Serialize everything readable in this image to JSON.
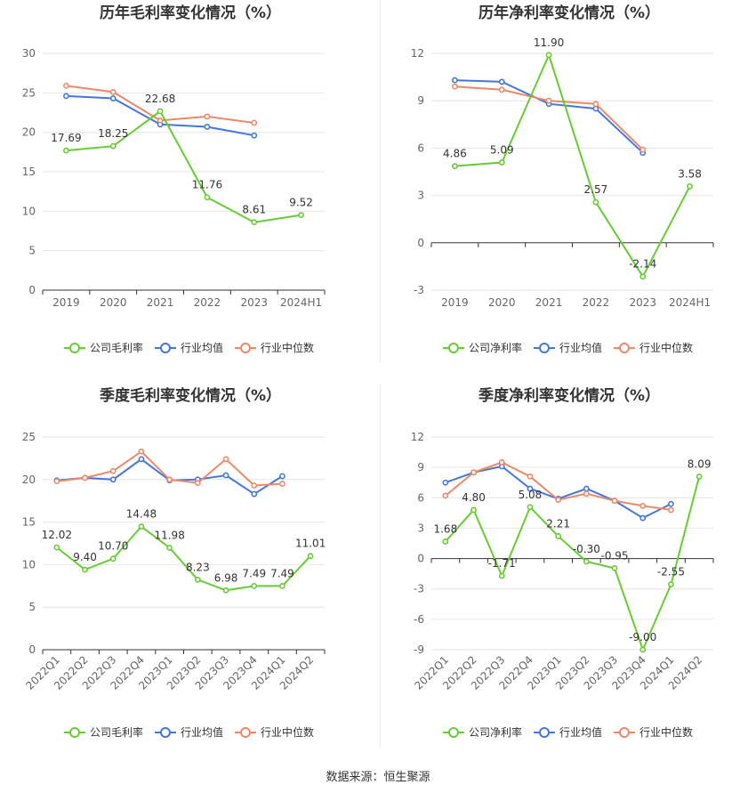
{
  "colors": {
    "company": "#66cc33",
    "avg": "#4477dd",
    "median": "#ee8866",
    "grid": "#e6e6e6",
    "axis": "#333333",
    "text": "#333333"
  },
  "legend": {
    "gross_company": "公司毛利率",
    "net_company": "公司净利率",
    "avg": "行业均值",
    "median": "行业中位数"
  },
  "source": "数据来源：恒生聚源",
  "chart_data": [
    {
      "type": "line",
      "title": "历年毛利率变化情况（%）",
      "categories": [
        "2019",
        "2020",
        "2021",
        "2022",
        "2023",
        "2024H1"
      ],
      "ylim": [
        0,
        30
      ],
      "yticks": [
        0,
        5,
        10,
        15,
        20,
        25,
        30
      ],
      "label_series": 0,
      "series": [
        {
          "name": "公司毛利率",
          "values": [
            17.69,
            18.25,
            22.68,
            11.76,
            8.61,
            9.52
          ],
          "labels": [
            "17.69",
            "18.25",
            "22.68",
            "11.76",
            "8.61",
            "9.52"
          ]
        },
        {
          "name": "行业均值",
          "values": [
            24.6,
            24.3,
            21.0,
            20.7,
            19.6,
            null
          ]
        },
        {
          "name": "行业中位数",
          "values": [
            25.9,
            25.1,
            21.5,
            22.0,
            21.2,
            null
          ]
        }
      ]
    },
    {
      "type": "line",
      "title": "历年净利率变化情况（%）",
      "categories": [
        "2019",
        "2020",
        "2021",
        "2022",
        "2023",
        "2024H1"
      ],
      "ylim": [
        -3,
        12
      ],
      "yticks": [
        -3,
        0,
        3,
        6,
        9,
        12
      ],
      "label_series": 0,
      "series": [
        {
          "name": "公司净利率",
          "values": [
            4.86,
            5.09,
            11.9,
            2.57,
            -2.14,
            3.58
          ],
          "labels": [
            "4.86",
            "5.09",
            "11.90",
            "2.57",
            "-2.14",
            "3.58"
          ]
        },
        {
          "name": "行业均值",
          "values": [
            10.3,
            10.2,
            8.8,
            8.5,
            5.7,
            null
          ]
        },
        {
          "name": "行业中位数",
          "values": [
            9.9,
            9.7,
            9.0,
            8.8,
            5.9,
            null
          ]
        }
      ]
    },
    {
      "type": "line",
      "title": "季度毛利率变化情况（%）",
      "categories": [
        "2022Q1",
        "2022Q2",
        "2022Q3",
        "2022Q4",
        "2023Q1",
        "2023Q2",
        "2023Q3",
        "2023Q4",
        "2024Q1",
        "2024Q2"
      ],
      "ylim": [
        0,
        25
      ],
      "yticks": [
        0,
        5,
        10,
        15,
        20,
        25
      ],
      "label_series": 0,
      "series": [
        {
          "name": "公司毛利率",
          "values": [
            12.02,
            9.4,
            10.7,
            14.48,
            11.98,
            8.23,
            6.98,
            7.49,
            7.49,
            11.01
          ],
          "labels": [
            "12.02",
            "9.40",
            "10.70",
            "14.48",
            "11.98",
            "8.23",
            "6.98",
            "7.49",
            "7.49",
            "11.01"
          ]
        },
        {
          "name": "行业均值",
          "values": [
            19.9,
            20.2,
            20.0,
            22.4,
            19.9,
            20.0,
            20.5,
            18.3,
            20.4,
            null
          ]
        },
        {
          "name": "行业中位数",
          "values": [
            19.8,
            20.2,
            21.0,
            23.3,
            20.0,
            19.6,
            22.4,
            19.3,
            19.5,
            null
          ]
        }
      ]
    },
    {
      "type": "line",
      "title": "季度净利率变化情况（%）",
      "categories": [
        "2022Q1",
        "2022Q2",
        "2022Q3",
        "2022Q4",
        "2023Q1",
        "2023Q2",
        "2023Q3",
        "2023Q4",
        "2024Q1",
        "2024Q2"
      ],
      "ylim": [
        -9,
        12
      ],
      "yticks": [
        -9,
        -6,
        -3,
        0,
        3,
        6,
        9,
        12
      ],
      "label_series": 0,
      "series": [
        {
          "name": "公司净利率",
          "values": [
            1.68,
            4.8,
            -1.71,
            5.08,
            2.21,
            -0.3,
            -0.95,
            -9.0,
            -2.55,
            8.09
          ],
          "labels": [
            "1.68",
            "4.80",
            "-1.71",
            "5.08",
            "2.21",
            "-0.30",
            "-0.95",
            "-9.00",
            "-2.55",
            "8.09"
          ]
        },
        {
          "name": "行业均值",
          "values": [
            7.5,
            8.5,
            9.1,
            6.9,
            5.9,
            6.9,
            5.7,
            4.0,
            5.4,
            null
          ]
        },
        {
          "name": "行业中位数",
          "values": [
            6.2,
            8.5,
            9.5,
            8.1,
            5.8,
            6.4,
            5.7,
            5.2,
            4.8,
            null
          ]
        }
      ]
    }
  ]
}
